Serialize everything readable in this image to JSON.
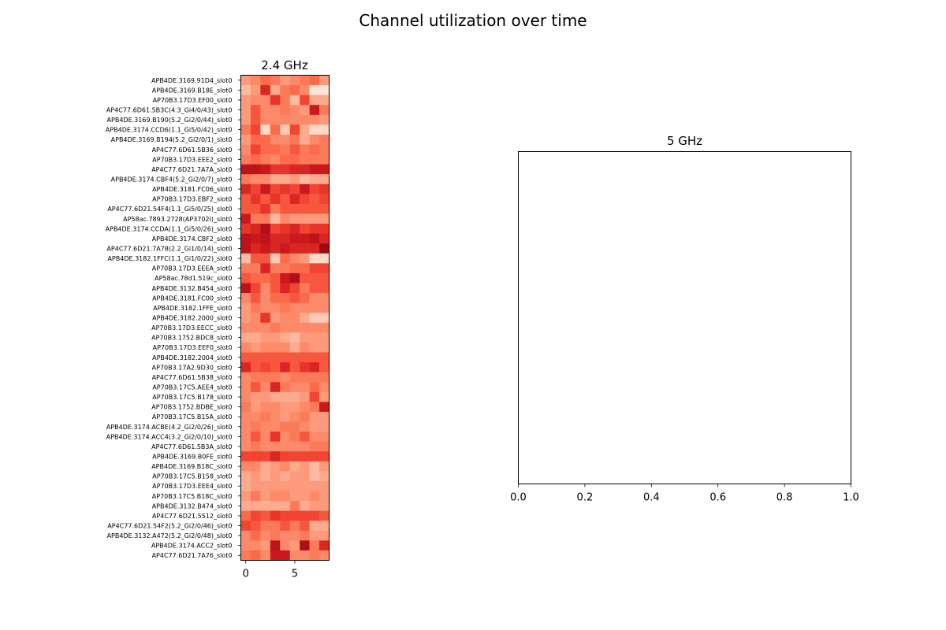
{
  "figure": {
    "title": "Channel utilization over time"
  },
  "chart_data": [
    {
      "type": "heatmap",
      "title": "2.4 GHz",
      "colormap": "Reds",
      "x_ticks": [
        0,
        5
      ],
      "x_columns": [
        0,
        1,
        2,
        3,
        4,
        5,
        6,
        7,
        8
      ],
      "row_labels": [
        "APB4DE.3169.91D4_slot0",
        "APB4DE.3169.B18E_slot0",
        "AP70B3.17D3.EF00_slot0",
        "AP4C77.6D61.5B3C(4.3_Gi4/0/43)_slot0",
        "APB4DE.3169.B190(5.2_Gi2/0/44)_slot0",
        "APB4DE.3174.CCD6(1.1_Gi5/0/42)_slot0",
        "APB4DE.3169.B194(5.2_Gi2/0/1)_slot0",
        "AP4C77.6D61.5B36_slot0",
        "AP70B3.17D3.EEE2_slot0",
        "AP4C77.6D21.7A7A_slot0",
        "APB4DE.3174.CBF4(5.2_Gi2/0/7)_slot0",
        "APB4DE.3181.FC06_slot0",
        "AP70B3.17D3.EBF2_slot0",
        "AP4C77.6D21.54F4(1.1_Gi5/0/25)_slot0",
        "AP58ac.7893.2728(AP3702I)_slot0",
        "APB4DE.3174.CCDA(1.1_Gi5/0/26)_slot0",
        "APB4DE.3174.CBF2_slot0",
        "AP4C77.6D21.7A78(2.2_Gi1/0/14)_slot0",
        "APB4DE.3182.1FFC(1.1_Gi1/0/22)_slot0",
        "AP70B3.17D3.EEEA_slot0",
        "AP58ac.78d1.519c_slot0",
        "APB4DE.3132.B454_slot0",
        "APB4DE.3181.FC00_slot0",
        "APB4DE.3182.1FFE_slot0",
        "APB4DE.3182.2000_slot0",
        "AP70B3.17D3.EECC_slot0",
        "AP70B3.1752.BDC8_slot0",
        "AP70B3.17D3.EEF0_slot0",
        "APB4DE.3182.2004_slot0",
        "AP70B3.17A2.9D30_slot0",
        "AP4C77.6D61.5B38_slot0",
        "AP70B3.17C5.AEE4_slot0",
        "AP70B3.17C5.B178_slot0",
        "AP70B3.1752.BDBE_slot0",
        "AP70B3.17C5.B15A_slot0",
        "APB4DE.3174.ACBE(4.2_Gi2/0/26)_slot0",
        "APB4DE.3174.ACC4(3.2_Gi2/0/10)_slot0",
        "AP4C77.6D61.5B3A_slot0",
        "APB4DE.3169.B0FE_slot0",
        "APB4DE.3169.B18C_slot0",
        "AP70B3.17C5.B158_slot0",
        "AP70B3.17D3.EEE4_slot0",
        "AP70B3.17C5.B18C_slot0",
        "APB4DE.3132.B474_slot0",
        "AP4C77.6D21.5512_slot0",
        "AP4C77.6D21.54F2(5.2_Gi2/0/46)_slot0",
        "APB4DE.3132.A472(5.2_Gi2/0/48)_slot0",
        "APB4DE.3174.ACC2_slot0",
        "AP4C77.6D21.7A76_slot0"
      ],
      "values": [
        [
          0.35,
          0.4,
          0.5,
          0.45,
          0.35,
          0.4,
          0.45,
          0.5,
          0.35
        ],
        [
          0.25,
          0.35,
          0.7,
          0.3,
          0.45,
          0.5,
          0.4,
          0.1,
          0.1
        ],
        [
          0.35,
          0.4,
          0.4,
          0.65,
          0.45,
          0.25,
          0.6,
          0.3,
          0.3
        ],
        [
          0.35,
          0.55,
          0.4,
          0.4,
          0.45,
          0.4,
          0.35,
          0.75,
          0.45
        ],
        [
          0.35,
          0.55,
          0.4,
          0.4,
          0.4,
          0.4,
          0.4,
          0.4,
          0.35
        ],
        [
          0.45,
          0.6,
          0.15,
          0.5,
          0.2,
          0.6,
          0.3,
          0.15,
          0.15
        ],
        [
          0.35,
          0.5,
          0.5,
          0.4,
          0.4,
          0.45,
          0.3,
          0.4,
          0.45
        ],
        [
          0.4,
          0.6,
          0.5,
          0.5,
          0.45,
          0.55,
          0.45,
          0.5,
          0.45
        ],
        [
          0.45,
          0.5,
          0.45,
          0.4,
          0.5,
          0.5,
          0.45,
          0.45,
          0.45
        ],
        [
          0.8,
          0.8,
          0.75,
          0.65,
          0.65,
          0.7,
          0.7,
          0.75,
          0.75
        ],
        [
          0.45,
          0.4,
          0.4,
          0.3,
          0.3,
          0.35,
          0.25,
          0.3,
          0.3
        ],
        [
          0.7,
          0.6,
          0.75,
          0.6,
          0.65,
          0.6,
          0.75,
          0.6,
          0.65
        ],
        [
          0.55,
          0.65,
          0.55,
          0.65,
          0.55,
          0.7,
          0.6,
          0.55,
          0.6
        ],
        [
          0.55,
          0.55,
          0.65,
          0.45,
          0.55,
          0.55,
          0.55,
          0.55,
          0.55
        ],
        [
          0.75,
          0.45,
          0.45,
          0.25,
          0.4,
          0.35,
          0.35,
          0.35,
          0.35
        ],
        [
          0.65,
          0.7,
          0.85,
          0.6,
          0.65,
          0.7,
          0.6,
          0.65,
          0.65
        ],
        [
          0.8,
          0.75,
          0.8,
          0.7,
          0.7,
          0.75,
          0.75,
          0.8,
          0.7
        ],
        [
          0.8,
          0.7,
          0.75,
          0.7,
          0.75,
          0.7,
          0.7,
          0.7,
          0.9
        ],
        [
          0.25,
          0.55,
          0.55,
          0.2,
          0.5,
          0.4,
          0.35,
          0.15,
          0.15
        ],
        [
          0.45,
          0.45,
          0.7,
          0.45,
          0.45,
          0.5,
          0.5,
          0.6,
          0.6
        ],
        [
          0.55,
          0.5,
          0.5,
          0.55,
          0.75,
          0.85,
          0.55,
          0.55,
          0.55
        ],
        [
          0.8,
          0.6,
          0.4,
          0.55,
          0.7,
          0.6,
          0.45,
          0.55,
          0.55
        ],
        [
          0.4,
          0.55,
          0.4,
          0.5,
          0.5,
          0.55,
          0.5,
          0.4,
          0.4
        ],
        [
          0.35,
          0.45,
          0.4,
          0.4,
          0.45,
          0.4,
          0.4,
          0.4,
          0.4
        ],
        [
          0.35,
          0.4,
          0.65,
          0.35,
          0.4,
          0.4,
          0.3,
          0.2,
          0.2
        ],
        [
          0.4,
          0.4,
          0.4,
          0.45,
          0.4,
          0.4,
          0.4,
          0.4,
          0.4
        ],
        [
          0.3,
          0.3,
          0.35,
          0.35,
          0.3,
          0.25,
          0.35,
          0.35,
          0.35
        ],
        [
          0.4,
          0.35,
          0.4,
          0.4,
          0.4,
          0.3,
          0.4,
          0.35,
          0.35
        ],
        [
          0.55,
          0.55,
          0.55,
          0.55,
          0.55,
          0.55,
          0.55,
          0.55,
          0.55
        ],
        [
          0.7,
          0.55,
          0.6,
          0.55,
          0.7,
          0.55,
          0.65,
          0.7,
          0.55
        ],
        [
          0.4,
          0.45,
          0.45,
          0.45,
          0.4,
          0.45,
          0.45,
          0.45,
          0.45
        ],
        [
          0.4,
          0.55,
          0.4,
          0.7,
          0.45,
          0.4,
          0.4,
          0.5,
          0.4
        ],
        [
          0.4,
          0.35,
          0.35,
          0.3,
          0.3,
          0.3,
          0.35,
          0.6,
          0.35
        ],
        [
          0.45,
          0.35,
          0.4,
          0.4,
          0.35,
          0.35,
          0.4,
          0.45,
          0.75
        ],
        [
          0.4,
          0.4,
          0.45,
          0.4,
          0.35,
          0.4,
          0.45,
          0.35,
          0.35
        ],
        [
          0.4,
          0.45,
          0.4,
          0.4,
          0.45,
          0.45,
          0.4,
          0.35,
          0.35
        ],
        [
          0.4,
          0.55,
          0.4,
          0.65,
          0.4,
          0.45,
          0.55,
          0.4,
          0.4
        ],
        [
          0.4,
          0.45,
          0.4,
          0.4,
          0.4,
          0.4,
          0.4,
          0.45,
          0.45
        ],
        [
          0.6,
          0.6,
          0.6,
          0.7,
          0.6,
          0.6,
          0.6,
          0.6,
          0.6
        ],
        [
          0.4,
          0.4,
          0.3,
          0.35,
          0.4,
          0.3,
          0.35,
          0.25,
          0.35
        ],
        [
          0.3,
          0.35,
          0.3,
          0.35,
          0.3,
          0.35,
          0.35,
          0.25,
          0.3
        ],
        [
          0.3,
          0.35,
          0.35,
          0.35,
          0.35,
          0.35,
          0.35,
          0.35,
          0.35
        ],
        [
          0.35,
          0.45,
          0.35,
          0.4,
          0.4,
          0.35,
          0.35,
          0.4,
          0.35
        ],
        [
          0.3,
          0.3,
          0.3,
          0.3,
          0.3,
          0.45,
          0.3,
          0.35,
          0.35
        ],
        [
          0.5,
          0.6,
          0.55,
          0.65,
          0.6,
          0.6,
          0.6,
          0.6,
          0.55
        ],
        [
          0.6,
          0.55,
          0.45,
          0.45,
          0.55,
          0.45,
          0.55,
          0.3,
          0.3
        ],
        [
          0.4,
          0.5,
          0.4,
          0.45,
          0.4,
          0.4,
          0.45,
          0.35,
          0.35
        ],
        [
          0.4,
          0.4,
          0.35,
          0.8,
          0.4,
          0.35,
          0.85,
          0.45,
          0.7
        ],
        [
          0.45,
          0.5,
          0.4,
          0.75,
          0.75,
          0.4,
          0.4,
          0.45,
          0.4
        ]
      ]
    },
    {
      "type": "scatter",
      "title": "5 GHz",
      "xlim": [
        0.0,
        1.0
      ],
      "x_ticks": [
        "0.0",
        "0.2",
        "0.4",
        "0.6",
        "0.8",
        "1.0"
      ],
      "empty": true
    }
  ]
}
